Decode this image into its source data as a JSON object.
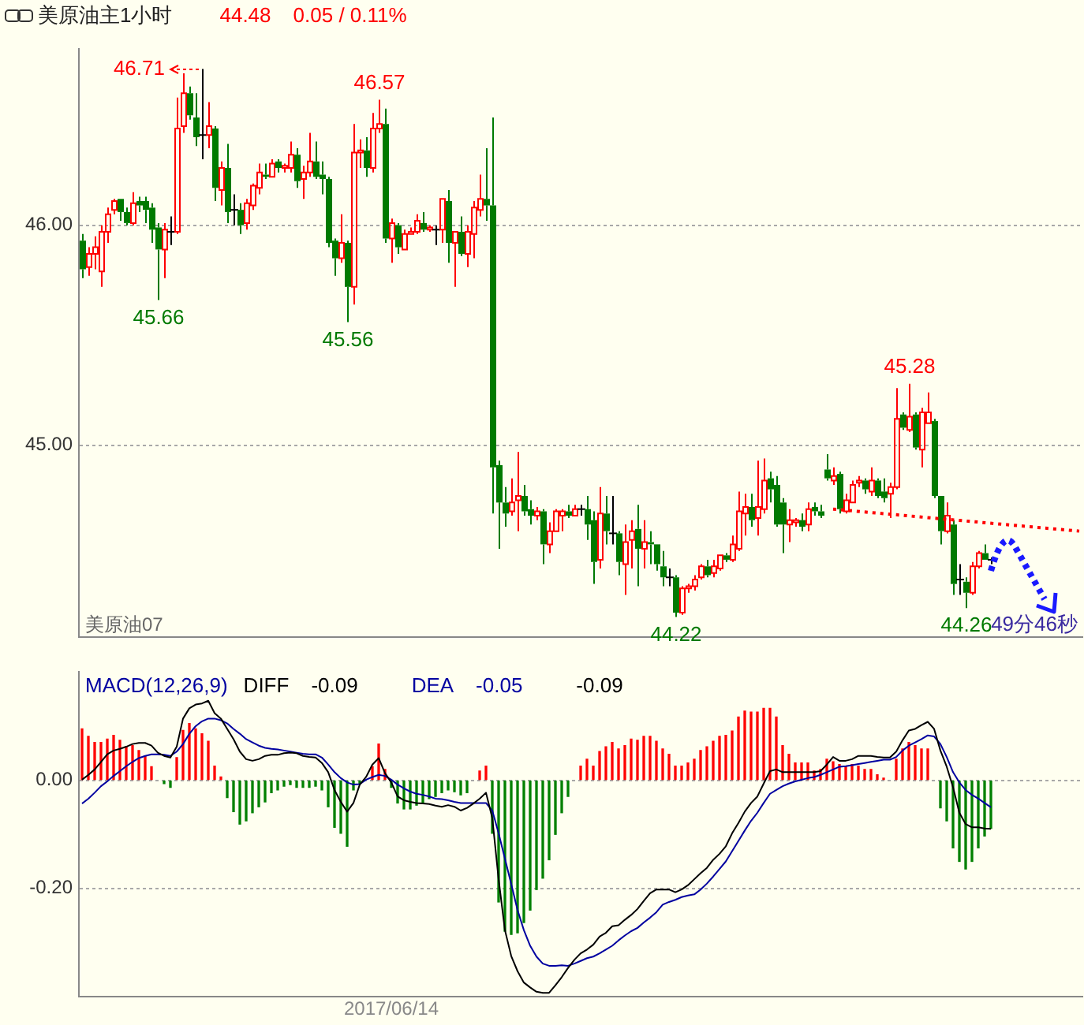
{
  "chart_data": [
    {
      "type": "candlestick",
      "title": "美原油主1小时",
      "categories": [
        null,
        null,
        null,
        null,
        null,
        null,
        null,
        null,
        null,
        null,
        null,
        null,
        null,
        null,
        null,
        null,
        null,
        null,
        null,
        null,
        null,
        null,
        null,
        null,
        null,
        null,
        null,
        null,
        null,
        null,
        null,
        null,
        null,
        null,
        null,
        null,
        null,
        null,
        null,
        null,
        null,
        null,
        null,
        null,
        null,
        null,
        null,
        null,
        null,
        null,
        null,
        null,
        null,
        null,
        null,
        null,
        null,
        null,
        null,
        null,
        null,
        null,
        null,
        null,
        null,
        null,
        null,
        null,
        null,
        null,
        null,
        null,
        null,
        null,
        null,
        null,
        null,
        null,
        null,
        null,
        null,
        null,
        null,
        null,
        null,
        null,
        null,
        null,
        null,
        null,
        null,
        null,
        null,
        null,
        null,
        null,
        null,
        null,
        null,
        null,
        null,
        null,
        null,
        null,
        null,
        null,
        null,
        null,
        null,
        null,
        null,
        null,
        null,
        null,
        null,
        null,
        null,
        null,
        null,
        null,
        null,
        null,
        null,
        null,
        null,
        null,
        null,
        null,
        null,
        null,
        null,
        null,
        null,
        null,
        null,
        null,
        null,
        null,
        null,
        null,
        null,
        null,
        null,
        null,
        null,
        null,
        null,
        null,
        null,
        null,
        null,
        null,
        null,
        null,
        null,
        null,
        null,
        null,
        null
      ],
      "ohlc": [
        [
          45.93,
          45.96,
          45.76,
          45.8
        ],
        [
          45.81,
          45.9,
          45.77,
          45.87
        ],
        [
          45.87,
          45.95,
          45.8,
          45.9
        ],
        [
          45.79,
          46.0,
          45.72,
          45.97
        ],
        [
          45.97,
          46.08,
          45.92,
          46.05
        ],
        [
          46.07,
          46.12,
          46.05,
          46.11
        ],
        [
          46.12,
          46.12,
          46.02,
          46.06
        ],
        [
          46.06,
          46.08,
          46.0,
          46.01
        ],
        [
          46.01,
          46.15,
          46.0,
          46.1
        ],
        [
          46.11,
          46.13,
          46.06,
          46.09
        ],
        [
          46.11,
          46.13,
          46.01,
          46.07
        ],
        [
          46.08,
          46.1,
          45.92,
          45.98
        ],
        [
          45.99,
          46.01,
          45.66,
          45.89
        ],
        [
          45.89,
          46.01,
          45.76,
          45.98
        ],
        [
          45.97,
          46.04,
          45.91,
          45.97
        ],
        [
          45.97,
          46.58,
          45.96,
          46.44
        ],
        [
          46.45,
          46.69,
          46.42,
          46.6
        ],
        [
          46.6,
          46.63,
          46.48,
          46.5
        ],
        [
          46.49,
          46.6,
          46.36,
          46.4
        ],
        [
          46.41,
          46.71,
          46.3,
          46.41
        ],
        [
          46.41,
          46.56,
          46.35,
          46.45
        ],
        [
          46.44,
          46.45,
          46.11,
          46.17
        ],
        [
          46.16,
          46.29,
          46.09,
          46.26
        ],
        [
          46.26,
          46.37,
          46.01,
          46.06
        ],
        [
          46.07,
          46.14,
          46.0,
          46.07
        ],
        [
          46.07,
          46.1,
          45.96,
          46.0
        ],
        [
          46.01,
          46.12,
          45.98,
          46.1
        ],
        [
          46.09,
          46.19,
          46.07,
          46.18
        ],
        [
          46.17,
          46.28,
          46.14,
          46.24
        ],
        [
          46.23,
          46.28,
          46.21,
          46.22
        ],
        [
          46.22,
          46.3,
          46.22,
          46.28
        ],
        [
          46.29,
          46.3,
          46.24,
          46.26
        ],
        [
          46.26,
          46.28,
          46.24,
          46.27
        ],
        [
          46.26,
          46.38,
          46.24,
          46.32
        ],
        [
          46.32,
          46.35,
          46.17,
          46.2
        ],
        [
          46.21,
          46.27,
          46.12,
          46.24
        ],
        [
          46.24,
          46.42,
          46.22,
          46.29
        ],
        [
          46.29,
          46.38,
          46.21,
          46.22
        ],
        [
          46.23,
          46.29,
          46.14,
          46.21
        ],
        [
          46.21,
          46.22,
          45.9,
          45.92
        ],
        [
          45.93,
          45.94,
          45.77,
          45.85
        ],
        [
          45.85,
          46.05,
          45.83,
          45.92
        ],
        [
          45.92,
          45.93,
          45.56,
          45.72
        ],
        [
          45.72,
          46.46,
          45.64,
          46.33
        ],
        [
          46.33,
          46.39,
          46.26,
          46.34
        ],
        [
          46.34,
          46.4,
          46.22,
          46.26
        ],
        [
          46.26,
          46.51,
          46.24,
          46.44
        ],
        [
          46.44,
          46.57,
          46.42,
          46.46
        ],
        [
          46.46,
          46.53,
          45.92,
          45.94
        ],
        [
          45.94,
          46.03,
          45.83,
          46.01
        ],
        [
          46.0,
          46.01,
          45.87,
          45.9
        ],
        [
          45.89,
          45.98,
          45.89,
          45.96
        ],
        [
          45.96,
          45.99,
          45.96,
          45.97
        ],
        [
          45.97,
          46.05,
          45.96,
          46.02
        ],
        [
          46.01,
          46.06,
          45.97,
          45.98
        ],
        [
          45.98,
          46.0,
          45.97,
          45.99
        ],
        [
          45.98,
          46.0,
          45.91,
          45.98
        ],
        [
          45.98,
          46.12,
          45.92,
          46.12
        ],
        [
          46.11,
          46.16,
          45.83,
          45.92
        ],
        [
          45.92,
          45.97,
          45.72,
          45.97
        ],
        [
          45.97,
          46.04,
          45.86,
          45.87
        ],
        [
          45.87,
          46.0,
          45.81,
          45.97
        ],
        [
          45.96,
          46.11,
          45.85,
          46.08
        ],
        [
          46.07,
          46.23,
          46.04,
          46.12
        ],
        [
          46.12,
          46.35,
          46.02,
          46.09
        ],
        [
          46.09,
          46.49,
          44.69,
          44.9
        ],
        [
          44.91,
          44.93,
          44.53,
          44.74
        ],
        [
          44.74,
          44.81,
          44.63,
          44.69
        ],
        [
          44.7,
          44.85,
          44.68,
          44.74
        ],
        [
          44.75,
          44.97,
          44.61,
          44.77
        ],
        [
          44.77,
          44.82,
          44.68,
          44.7
        ],
        [
          44.71,
          44.75,
          44.64,
          44.68
        ],
        [
          44.68,
          44.72,
          44.66,
          44.7
        ],
        [
          44.7,
          44.71,
          44.46,
          44.55
        ],
        [
          44.55,
          44.65,
          44.51,
          44.61
        ],
        [
          44.61,
          44.71,
          44.61,
          44.7
        ],
        [
          44.68,
          44.71,
          44.61,
          44.7
        ],
        [
          44.7,
          44.73,
          44.67,
          44.68
        ],
        [
          44.68,
          44.73,
          44.68,
          44.71
        ],
        [
          44.71,
          44.73,
          44.68,
          44.71
        ],
        [
          44.71,
          44.77,
          44.57,
          44.64
        ],
        [
          44.66,
          44.7,
          44.37,
          44.47
        ],
        [
          44.48,
          44.81,
          44.44,
          44.69
        ],
        [
          44.69,
          44.77,
          44.55,
          44.61
        ],
        [
          44.6,
          44.77,
          44.55,
          44.6
        ],
        [
          44.6,
          44.61,
          44.41,
          44.47
        ],
        [
          44.46,
          44.64,
          44.32,
          44.56
        ],
        [
          44.57,
          44.66,
          44.44,
          44.61
        ],
        [
          44.62,
          44.73,
          44.36,
          44.53
        ],
        [
          44.53,
          44.66,
          44.44,
          44.56
        ],
        [
          44.56,
          44.61,
          44.46,
          44.55
        ],
        [
          44.55,
          44.55,
          44.43,
          44.46
        ],
        [
          44.45,
          44.52,
          44.36,
          44.4
        ],
        [
          44.4,
          44.44,
          44.36,
          44.4
        ],
        [
          44.4,
          44.41,
          44.22,
          44.24
        ],
        [
          44.24,
          44.36,
          44.23,
          44.35
        ],
        [
          44.35,
          44.37,
          44.33,
          44.36
        ],
        [
          44.36,
          44.41,
          44.34,
          44.39
        ],
        [
          44.4,
          44.46,
          44.39,
          44.45
        ],
        [
          44.45,
          44.48,
          44.4,
          44.41
        ],
        [
          44.42,
          44.48,
          44.4,
          44.45
        ],
        [
          44.44,
          44.5,
          44.43,
          44.5
        ],
        [
          44.5,
          44.51,
          44.47,
          44.48
        ],
        [
          44.48,
          44.59,
          44.47,
          44.55
        ],
        [
          44.53,
          44.79,
          44.52,
          44.7
        ],
        [
          44.69,
          44.78,
          44.59,
          44.72
        ],
        [
          44.72,
          44.78,
          44.63,
          44.66
        ],
        [
          44.67,
          44.93,
          44.59,
          44.72
        ],
        [
          44.71,
          44.94,
          44.69,
          44.84
        ],
        [
          44.85,
          44.88,
          44.74,
          44.8
        ],
        [
          44.82,
          44.86,
          44.63,
          44.64
        ],
        [
          44.74,
          44.76,
          44.51,
          44.64
        ],
        [
          44.64,
          44.71,
          44.56,
          44.66
        ],
        [
          44.65,
          44.67,
          44.63,
          44.66
        ],
        [
          44.66,
          44.69,
          44.61,
          44.63
        ],
        [
          44.64,
          44.74,
          44.61,
          44.71
        ],
        [
          44.72,
          44.74,
          44.68,
          44.7
        ],
        [
          44.7,
          44.73,
          44.67,
          44.68
        ],
        [
          44.89,
          44.96,
          44.84,
          44.85
        ],
        [
          44.84,
          44.9,
          44.82,
          44.86
        ],
        [
          44.87,
          44.88,
          44.69,
          44.71
        ],
        [
          44.7,
          44.78,
          44.69,
          44.75
        ],
        [
          44.74,
          44.84,
          44.74,
          44.82
        ],
        [
          44.83,
          44.86,
          44.81,
          44.84
        ],
        [
          44.84,
          44.85,
          44.78,
          44.8
        ],
        [
          44.79,
          44.9,
          44.77,
          44.84
        ],
        [
          44.84,
          44.85,
          44.76,
          44.77
        ],
        [
          44.79,
          44.85,
          44.74,
          44.76
        ],
        [
          44.78,
          44.83,
          44.67,
          44.81
        ],
        [
          44.81,
          45.26,
          44.8,
          45.12
        ],
        [
          45.14,
          45.15,
          45.07,
          45.08
        ],
        [
          45.07,
          45.28,
          45.06,
          45.13
        ],
        [
          45.14,
          45.15,
          44.98,
          44.99
        ],
        [
          44.98,
          45.17,
          44.9,
          45.15
        ],
        [
          45.1,
          45.24,
          45.1,
          45.15
        ],
        [
          45.11,
          45.12,
          44.76,
          44.77
        ],
        [
          44.77,
          44.77,
          44.55,
          44.61
        ],
        [
          44.61,
          44.74,
          44.6,
          44.68
        ],
        [
          44.64,
          44.66,
          44.32,
          44.37
        ],
        [
          44.39,
          44.46,
          44.32,
          44.39
        ],
        [
          44.38,
          44.4,
          44.26,
          44.33
        ],
        [
          44.33,
          44.47,
          44.32,
          44.45
        ],
        [
          44.45,
          44.52,
          44.44,
          44.51
        ],
        [
          44.51,
          44.55,
          44.48,
          44.48
        ],
        [
          44.48,
          44.49,
          44.46,
          44.48
        ],
        null,
        null,
        null,
        null,
        null,
        null,
        null,
        null,
        null,
        null,
        null,
        null,
        null,
        null
      ],
      "series": [
        {
          "type": "line",
          "color": "#ff0000",
          "line_style": "dotted",
          "values": [
            null,
            null,
            null,
            null,
            null,
            null,
            null,
            null,
            null,
            null,
            null,
            null,
            null,
            null,
            null,
            null,
            null,
            null,
            null,
            null,
            null,
            null,
            null,
            null,
            null,
            null,
            null,
            null,
            null,
            null,
            null,
            null,
            null,
            null,
            null,
            null,
            null,
            null,
            null,
            null,
            null,
            null,
            null,
            null,
            null,
            null,
            null,
            null,
            null,
            null,
            null,
            null,
            null,
            null,
            null,
            null,
            null,
            null,
            null,
            null,
            null,
            null,
            null,
            null,
            null,
            null,
            null,
            null,
            null,
            null,
            null,
            null,
            null,
            null,
            null,
            null,
            null,
            null,
            null,
            null,
            null,
            null,
            null,
            null,
            null,
            null,
            null,
            null,
            null,
            null,
            null,
            null,
            null,
            null,
            null,
            null,
            null,
            null,
            null,
            null,
            null,
            null,
            null,
            null,
            null,
            null,
            null,
            null,
            null,
            null,
            null,
            null,
            null,
            null,
            null,
            null,
            null,
            null,
            null,
            44.71,
            null,
            null,
            null,
            null,
            null,
            null,
            null,
            null,
            null,
            null,
            null,
            null,
            null,
            null,
            null,
            null,
            null,
            null,
            null,
            null,
            null,
            null,
            null,
            null,
            null,
            null,
            null,
            null,
            null,
            null,
            null,
            null,
            null,
            null,
            null,
            null,
            null,
            null,
            44.61
          ]
        }
      ],
      "ylim": [
        44.13,
        46.8
      ],
      "yticks": [
        {
          "value": 45,
          "label": "45.00"
        },
        {
          "value": 46,
          "label": "46.00"
        }
      ],
      "grid": "y",
      "tick_labels": "y",
      "annotations": [
        "44.48",
        "0.05 / 0.11%",
        "46.71",
        {
          "text": "46.57",
          "y": 46.57
        },
        {
          "text": "45.66",
          "y": 45.66
        },
        {
          "text": "45.56",
          "y": 45.56
        },
        {
          "text": "44.22",
          "y": 44.22
        },
        {
          "text": "45.28",
          "y": 45.28
        },
        {
          "text": "44.26",
          "y": 44.26
        },
        "美原油07",
        "49分46秒"
      ]
    },
    {
      "type": "bar",
      "title": "MACD(12,26,9)",
      "categories": [
        null,
        null,
        null,
        null,
        null,
        null,
        null,
        null,
        null,
        null,
        null,
        null,
        null,
        null,
        null,
        null,
        null,
        null,
        null,
        null,
        null,
        null,
        null,
        null,
        null,
        null,
        null,
        null,
        null,
        null,
        null,
        null,
        null,
        null,
        null,
        null,
        null,
        null,
        null,
        null,
        null,
        null,
        null,
        null,
        null,
        null,
        null,
        null,
        null,
        "2017/06/14",
        null,
        null,
        null,
        null,
        null,
        null,
        null,
        null,
        null,
        null,
        null,
        null,
        null,
        null,
        null,
        null,
        null,
        null,
        null,
        null,
        null,
        null,
        null,
        null,
        null,
        null,
        null,
        null,
        null,
        null,
        null,
        null,
        null,
        null,
        null,
        null,
        null,
        null,
        null,
        null,
        null,
        null,
        null,
        null,
        null,
        null,
        null,
        null,
        null,
        null,
        null,
        null,
        null,
        null,
        null,
        null,
        null,
        null,
        null,
        null,
        null,
        null,
        null,
        null,
        null,
        null,
        null,
        null,
        null,
        null,
        null,
        null,
        null,
        null,
        null,
        null,
        null,
        null,
        null,
        null,
        null,
        null,
        null,
        null,
        null,
        null,
        null,
        null,
        null,
        null,
        null,
        null,
        null,
        null,
        null,
        null,
        null,
        null,
        null,
        null,
        null,
        null,
        null,
        null,
        null,
        null,
        null,
        null,
        null
      ],
      "series": [
        {
          "type": "bar",
          "color": "#ff0000",
          "values": [
            0.095,
            0.081,
            0.07,
            0.07,
            0.076,
            0.083,
            0.074,
            0.062,
            0.064,
            0.055,
            0.045,
            0.025,
            null,
            null,
            null,
            0.042,
            0.092,
            0.105,
            0.095,
            0.086,
            0.072,
            0.026,
            0.006,
            null,
            null,
            null,
            null,
            null,
            null,
            null,
            null,
            null,
            null,
            null,
            null,
            null,
            null,
            null,
            null,
            null,
            null,
            null,
            null,
            null,
            null,
            null,
            0.025,
            0.067,
            0.02,
            null,
            null,
            null,
            null,
            null,
            null,
            null,
            null,
            null,
            null,
            null,
            null,
            null,
            null,
            0.017,
            0.026,
            null,
            null,
            null,
            null,
            null,
            null,
            null,
            null,
            null,
            null,
            null,
            null,
            null,
            null,
            0.026,
            0.039,
            0.026,
            0.053,
            0.062,
            0.07,
            0.058,
            0.064,
            0.076,
            0.074,
            0.081,
            0.081,
            0.072,
            0.058,
            0.048,
            0.026,
            0.026,
            0.032,
            0.039,
            0.055,
            0.062,
            0.072,
            0.081,
            0.083,
            0.091,
            0.117,
            0.128,
            0.126,
            0.126,
            0.133,
            0.133,
            0.117,
            0.064,
            0.048,
            0.032,
            0.032,
            0.032,
            0.017,
            0.02,
            0.039,
            0.034,
            0.029,
            0.026,
            0.029,
            0.026,
            0.02,
            0.02,
            0.01,
            0.004,
            null,
            0.039,
            0.058,
            0.07,
            0.064,
            0.058,
            0.058,
            null,
            null,
            null,
            null,
            null,
            null,
            null,
            null,
            null,
            null,
            null,
            null,
            null,
            null,
            null,
            null,
            null,
            null,
            null,
            null,
            null,
            null,
            null,
            null
          ]
        },
        {
          "type": "bar",
          "color": "#008000",
          "values": [
            null,
            null,
            null,
            null,
            null,
            null,
            null,
            null,
            null,
            null,
            null,
            null,
            null,
            -0.006,
            -0.013,
            null,
            null,
            null,
            null,
            null,
            null,
            null,
            null,
            -0.032,
            -0.058,
            -0.081,
            -0.075,
            -0.06,
            -0.049,
            -0.04,
            -0.023,
            -0.018,
            -0.011,
            -0.008,
            -0.013,
            -0.013,
            -0.013,
            -0.011,
            -0.018,
            -0.049,
            -0.087,
            -0.098,
            -0.122,
            -0.018,
            -0.006,
            null,
            null,
            null,
            null,
            -0.013,
            -0.042,
            -0.053,
            -0.053,
            -0.046,
            -0.042,
            -0.034,
            -0.03,
            -0.023,
            -0.018,
            -0.021,
            -0.027,
            -0.023,
            null,
            null,
            null,
            -0.098,
            -0.225,
            -0.279,
            -0.285,
            -0.282,
            -0.263,
            -0.24,
            -0.202,
            -0.181,
            -0.147,
            -0.1,
            -0.06,
            -0.03,
            null,
            null,
            null,
            null,
            null,
            null,
            null,
            null,
            null,
            null,
            null,
            null,
            null,
            null,
            null,
            null,
            null,
            null,
            null,
            null,
            null,
            null,
            null,
            null,
            null,
            null,
            null,
            null,
            null,
            null,
            null,
            null,
            null,
            null,
            null,
            null,
            null,
            null,
            null,
            null,
            null,
            null,
            null,
            null,
            null,
            null,
            null,
            null,
            null,
            null,
            null,
            null,
            null,
            null,
            null,
            null,
            null,
            null,
            -0.051,
            -0.075,
            -0.125,
            -0.15,
            -0.164,
            -0.15,
            -0.125,
            -0.103,
            -0.089,
            null,
            null,
            null,
            null,
            null,
            null,
            null,
            null,
            null,
            null,
            null,
            null,
            null,
            null
          ]
        },
        {
          "type": "line",
          "name": "DIFF",
          "color": "#000000",
          "values": [
            0.001,
            0.01,
            0.02,
            0.034,
            0.048,
            0.055,
            0.058,
            0.062,
            0.067,
            0.069,
            0.069,
            0.064,
            0.051,
            0.045,
            0.042,
            0.062,
            0.114,
            0.133,
            0.14,
            0.142,
            0.147,
            0.124,
            0.114,
            0.095,
            0.076,
            0.053,
            0.039,
            0.036,
            0.039,
            0.045,
            0.047,
            0.047,
            0.05,
            0.051,
            0.05,
            0.045,
            0.043,
            0.042,
            0.032,
            0.015,
            -0.018,
            -0.04,
            -0.058,
            -0.042,
            -0.008,
            0.006,
            0.029,
            0.041,
            0.013,
            -0.004,
            -0.03,
            -0.037,
            -0.04,
            -0.042,
            -0.043,
            -0.044,
            -0.047,
            -0.049,
            -0.046,
            -0.049,
            -0.056,
            -0.051,
            -0.043,
            -0.034,
            -0.023,
            -0.07,
            -0.183,
            -0.277,
            -0.325,
            -0.353,
            -0.374,
            -0.383,
            -0.391,
            -0.393,
            -0.393,
            -0.379,
            -0.364,
            -0.347,
            -0.332,
            -0.32,
            -0.313,
            -0.304,
            -0.289,
            -0.282,
            -0.27,
            -0.268,
            -0.258,
            -0.249,
            -0.238,
            -0.223,
            -0.209,
            -0.202,
            -0.202,
            -0.202,
            -0.207,
            -0.202,
            -0.194,
            -0.183,
            -0.172,
            -0.162,
            -0.147,
            -0.136,
            -0.122,
            -0.098,
            -0.079,
            -0.058,
            -0.042,
            -0.03,
            -0.006,
            0.017,
            0.02,
            0.015,
            0.015,
            0.015,
            0.015,
            0.015,
            0.015,
            0.017,
            0.029,
            0.043,
            0.036,
            0.036,
            0.039,
            0.045,
            0.045,
            0.045,
            0.043,
            0.042,
            0.042,
            0.053,
            0.074,
            0.092,
            0.095,
            0.102,
            0.108,
            0.095,
            0.055,
            0.025,
            -0.013,
            -0.06,
            -0.081,
            -0.087,
            -0.087,
            -0.089,
            -0.09,
            null,
            null,
            null,
            null,
            null,
            null,
            null,
            null,
            null,
            null,
            null,
            null,
            null,
            null
          ]
        },
        {
          "type": "line",
          "name": "DEA",
          "color": "#0000a0",
          "values": [
            -0.043,
            -0.034,
            -0.023,
            -0.011,
            -0.002,
            0.008,
            0.017,
            0.026,
            0.034,
            0.041,
            0.045,
            0.048,
            0.048,
            0.047,
            0.045,
            0.053,
            0.067,
            0.086,
            0.1,
            0.109,
            0.114,
            0.114,
            0.111,
            0.105,
            0.095,
            0.086,
            0.076,
            0.07,
            0.064,
            0.06,
            0.058,
            0.057,
            0.055,
            0.053,
            0.051,
            0.049,
            0.048,
            0.048,
            0.042,
            0.029,
            0.015,
            0.004,
            -0.004,
            -0.008,
            -0.007,
            0.001,
            0.006,
            0.01,
            0.008,
            0.001,
            -0.008,
            -0.015,
            -0.021,
            -0.025,
            -0.027,
            -0.03,
            -0.034,
            -0.035,
            -0.037,
            -0.04,
            -0.042,
            -0.042,
            -0.042,
            -0.042,
            -0.042,
            -0.056,
            -0.098,
            -0.145,
            -0.192,
            -0.24,
            -0.277,
            -0.306,
            -0.326,
            -0.339,
            -0.343,
            -0.343,
            -0.342,
            -0.343,
            -0.339,
            -0.334,
            -0.329,
            -0.326,
            -0.32,
            -0.313,
            -0.306,
            -0.296,
            -0.287,
            -0.279,
            -0.273,
            -0.263,
            -0.254,
            -0.244,
            -0.23,
            -0.225,
            -0.221,
            -0.216,
            -0.213,
            -0.211,
            -0.202,
            -0.191,
            -0.178,
            -0.164,
            -0.15,
            -0.131,
            -0.112,
            -0.093,
            -0.075,
            -0.06,
            -0.042,
            -0.025,
            -0.018,
            -0.011,
            -0.006,
            -0.002,
            0.001,
            0.004,
            0.006,
            0.01,
            0.015,
            0.02,
            0.025,
            0.026,
            0.028,
            0.03,
            0.032,
            0.034,
            0.036,
            0.038,
            0.038,
            0.043,
            0.055,
            0.064,
            0.07,
            0.076,
            0.083,
            0.081,
            0.067,
            0.043,
            0.015,
            -0.004,
            -0.018,
            -0.027,
            -0.034,
            -0.042,
            -0.05,
            null,
            null,
            null,
            null,
            null,
            null,
            null,
            null,
            null,
            null,
            null,
            null,
            null,
            null
          ]
        }
      ],
      "ylim": [
        -0.4,
        0.2
      ],
      "yticks": [
        {
          "value": -0.2,
          "label": "-0.20"
        },
        {
          "value": 0,
          "label": "0.00"
        }
      ],
      "grid": "y",
      "legend": "top left",
      "annotations": [
        "-0.09",
        "-0.05",
        "-0.09"
      ]
    }
  ]
}
